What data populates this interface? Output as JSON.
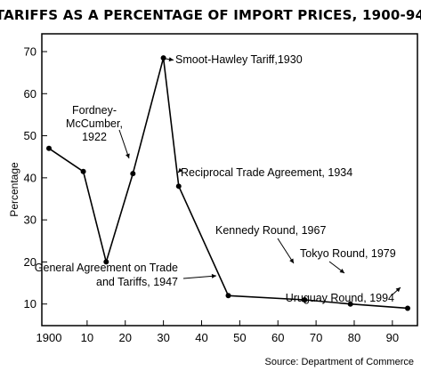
{
  "chart_data": {
    "type": "line",
    "title": "TARIFFS AS A PERCENTAGE OF IMPORT PRICES, 1900-94",
    "ylabel": "Percentage",
    "xlabel": "",
    "xlim": [
      1900,
      1994
    ],
    "ylim": [
      0,
      70
    ],
    "x_ticks": [
      1900,
      1910,
      1920,
      1930,
      1940,
      1950,
      1960,
      1970,
      1980,
      1990
    ],
    "x_tick_labels": [
      "1900",
      "10",
      "20",
      "30",
      "40",
      "50",
      "60",
      "70",
      "80",
      "90"
    ],
    "y_ticks": [
      10,
      20,
      30,
      40,
      50,
      60,
      70
    ],
    "y_tick_labels": [
      "10",
      "20",
      "30",
      "40",
      "50",
      "60",
      "70"
    ],
    "grid": false,
    "series": [
      {
        "x": [
          1900,
          1909,
          1915,
          1922,
          1930,
          1934,
          1947,
          1967,
          1979,
          1994
        ],
        "y": [
          47,
          41.5,
          20,
          41,
          68.5,
          38,
          12,
          11,
          10,
          9
        ]
      }
    ],
    "annotations": [
      {
        "lines": [
          "Smoot-Hawley Tariff,1930"
        ],
        "x": 1930,
        "y": 68.5
      },
      {
        "lines": [
          "Fordney-",
          "McCumber,",
          "1922"
        ],
        "x": 1922,
        "y": 41
      },
      {
        "lines": [
          "Reciprocal Trade Agreement, 1934"
        ],
        "x": 1934,
        "y": 38
      },
      {
        "lines": [
          "Kennedy Round, 1967"
        ],
        "x": 1967,
        "y": 11
      },
      {
        "lines": [
          "Tokyo Round, 1979"
        ],
        "x": 1979,
        "y": 10
      },
      {
        "lines": [
          "General Agreement on Trade",
          "and Tariffs, 1947"
        ],
        "x": 1947,
        "y": 12
      },
      {
        "lines": [
          "Uruguay Round, 1994"
        ],
        "x": 1994,
        "y": 9
      }
    ],
    "source": "Source: Department of Commerce"
  }
}
